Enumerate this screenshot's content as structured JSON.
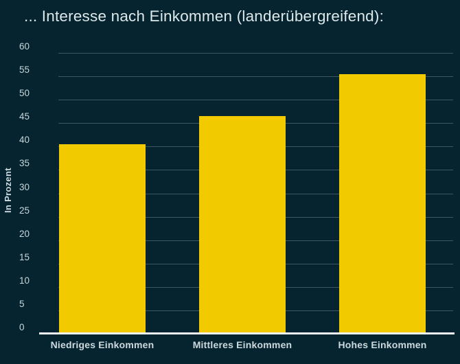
{
  "title": "... Interesse nach Einkommen (landerübergreifend):",
  "chart_data": {
    "type": "bar",
    "title": "... Interesse nach Einkommen (landerübergreifend):",
    "categories": [
      "Niedriges Einkommen",
      "Mittleres Einkommen",
      "Hohes Einkommen"
    ],
    "values": [
      40.5,
      46.5,
      55.5
    ],
    "xlabel": "",
    "ylabel": "In Prozent",
    "ylim": [
      0,
      60
    ],
    "yticks": [
      0,
      5,
      10,
      15,
      20,
      25,
      30,
      35,
      40,
      45,
      50,
      55,
      60
    ],
    "grid": "horizontal",
    "legend": "none",
    "colors": {
      "bar": "#f2ca00",
      "background": "#06242f",
      "text": "#dce8ea",
      "gridline": "rgba(200,222,230,0.28)",
      "axis_line": "#eef4f5"
    }
  }
}
